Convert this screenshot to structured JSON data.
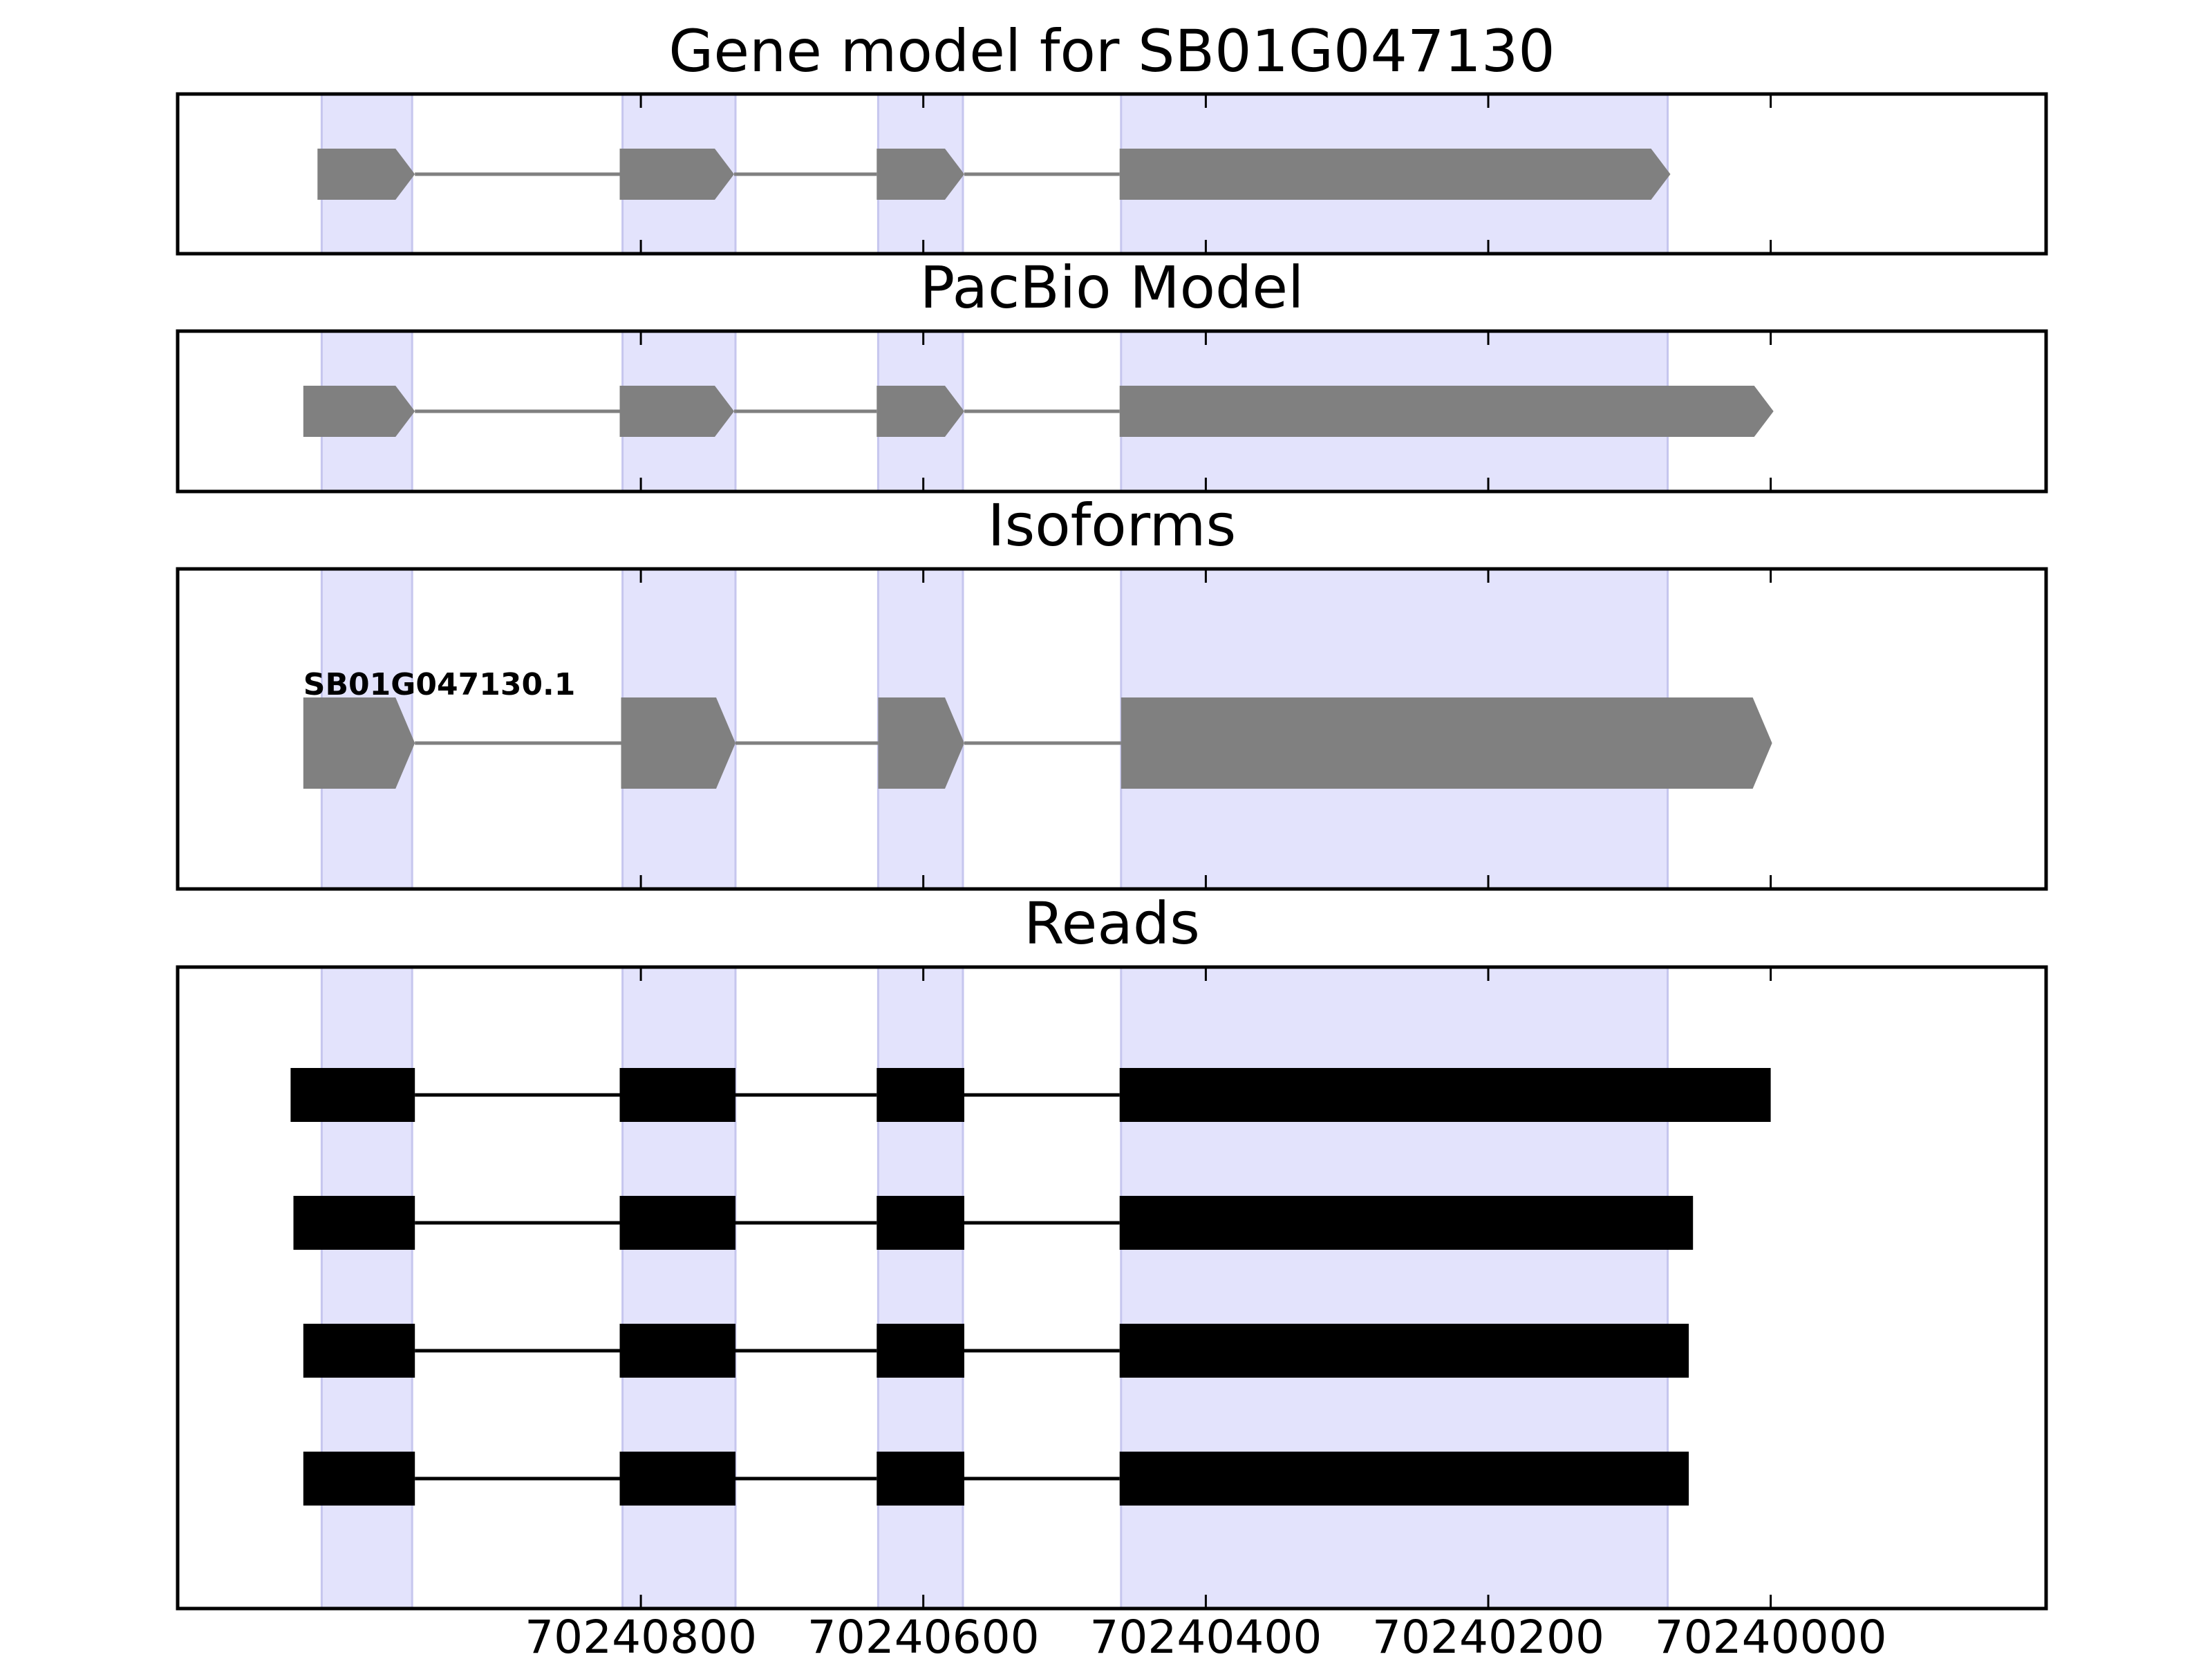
{
  "chart_data": {
    "type": "gene_model_tracks",
    "x_axis": {
      "reversed": true,
      "xlim": [
        70241128,
        70239805
      ],
      "ticks": [
        70240800,
        70240600,
        70240400,
        70240200,
        70240000
      ],
      "tick_labels": [
        "70240800",
        "70240600",
        "70240400",
        "70240200",
        "70240000"
      ]
    },
    "shaded_regions": [
      [
        70241026,
        70240962
      ],
      [
        70240813,
        70240733
      ],
      [
        70240632,
        70240572
      ],
      [
        70240460,
        70240073
      ]
    ],
    "shade_color": "#e3e3fc",
    "tracks": [
      {
        "title": "Gene model for SB01G047130",
        "kind": "gene",
        "color": "#808080",
        "strand": "-",
        "exons": [
          [
            70241029,
            70240960
          ],
          [
            70240815,
            70240734
          ],
          [
            70240633,
            70240571
          ],
          [
            70240461,
            70240071
          ]
        ]
      },
      {
        "title": "PacBio Model",
        "kind": "gene",
        "color": "#808080",
        "strand": "-",
        "exons": [
          [
            70241039,
            70240960
          ],
          [
            70240815,
            70240734
          ],
          [
            70240633,
            70240571
          ],
          [
            70240461,
            70239998
          ]
        ]
      },
      {
        "title": "Isoforms",
        "kind": "isoform",
        "color": "#808080",
        "strand": "-",
        "label": "SB01G047130.1",
        "exons": [
          [
            70241039,
            70240960
          ],
          [
            70240814,
            70240733
          ],
          [
            70240632,
            70240571
          ],
          [
            70240460,
            70239999
          ]
        ]
      },
      {
        "title": "Reads",
        "kind": "reads",
        "color": "#000000",
        "reads": [
          [
            [
              70241048,
              70240960
            ],
            [
              70240815,
              70240733
            ],
            [
              70240633,
              70240571
            ],
            [
              70240461,
              70240000
            ]
          ],
          [
            [
              70241046,
              70240960
            ],
            [
              70240815,
              70240733
            ],
            [
              70240633,
              70240571
            ],
            [
              70240461,
              70240055
            ]
          ],
          [
            [
              70241039,
              70240960
            ],
            [
              70240815,
              70240733
            ],
            [
              70240633,
              70240571
            ],
            [
              70240461,
              70240058
            ]
          ],
          [
            [
              70241039,
              70240960
            ],
            [
              70240815,
              70240733
            ],
            [
              70240633,
              70240571
            ],
            [
              70240461,
              70240058
            ]
          ]
        ]
      }
    ]
  }
}
